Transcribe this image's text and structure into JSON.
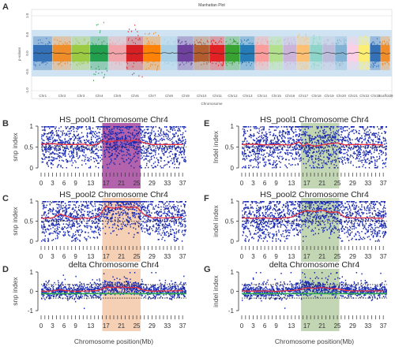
{
  "chart_data": [
    {
      "type": "scatter",
      "panel": "A",
      "title": "Manhattan Plot",
      "xlabel": "Chromosome",
      "ylabel": "p-values",
      "categories": [
        "Chr1",
        "Chr2",
        "Chr3",
        "Chr4",
        "Chr5",
        "Chr6",
        "Chr7",
        "Chr8",
        "Chr9",
        "Chr10",
        "Chr11",
        "Chr12",
        "Chr13",
        "Chr14",
        "Chr15",
        "Chr16",
        "Chr17",
        "Chr18",
        "Chr19",
        "Chr20",
        "Chr21",
        "Chr22",
        "Chr23",
        "ScaffoldN"
      ],
      "category_labels": [
        "Chr1",
        "Chr2",
        "Chr3",
        "Chr4",
        "Chr5",
        "Chr6",
        "Chr7",
        "Chr8",
        "Chr9",
        "Chr10",
        "Chr11",
        "Chr12",
        "Chr13",
        "Chr14",
        "Chr15",
        "Chr16",
        "Chr17",
        "Chr18",
        "Chr19",
        "Chr20",
        "Chr21",
        "Chr22",
        "Chr23",
        "Scaffold8"
      ],
      "y_ticks": [
        "1.0",
        "0.5",
        "0.0",
        "-0.5",
        "-1.0"
      ],
      "ylim": [
        -1,
        1
      ],
      "colors": [
        "#2f6db5",
        "#f08a24",
        "#9ac93b",
        "#1e9e49",
        "#f2a3a8",
        "#d7191c",
        "#ff7f00",
        "#a6cee3",
        "#6a3d9a",
        "#b15928",
        "#e31a1c",
        "#33a02c",
        "#1f78b4",
        "#fb9a99",
        "#b2df8a",
        "#cab2d6",
        "#fdbf6f",
        "#8dd3c7",
        "#bebada",
        "#80b1d3",
        "#fccde5",
        "#ffed6f",
        "#2f6db5",
        "#f08a24"
      ]
    },
    {
      "type": "scatter",
      "panel": "B",
      "title": "HS_pool1 Chromosome Chr4",
      "ylabel": "snp index",
      "x_ticks": [
        0,
        3,
        6,
        9,
        13,
        17,
        21,
        25,
        29,
        33,
        37
      ],
      "y_ticks": [
        0,
        0.5,
        1
      ],
      "ylim": [
        0,
        1
      ],
      "xlim": [
        0,
        38
      ],
      "highlight": [
        16,
        26
      ],
      "highlight_color": "#a6469e",
      "point_color": "#1a2ab0",
      "line_color": "#e8323c",
      "threshold": 0.5,
      "trend": [
        [
          0,
          0.57
        ],
        [
          3,
          0.58
        ],
        [
          6,
          0.56
        ],
        [
          9,
          0.56
        ],
        [
          11,
          0.57
        ],
        [
          13,
          0.54
        ],
        [
          15,
          0.58
        ],
        [
          16,
          0.66
        ],
        [
          17,
          0.62
        ],
        [
          19,
          0.64
        ],
        [
          21,
          0.66
        ],
        [
          23,
          0.64
        ],
        [
          25,
          0.67
        ],
        [
          27,
          0.6
        ],
        [
          29,
          0.56
        ],
        [
          33,
          0.56
        ],
        [
          37,
          0.56
        ]
      ]
    },
    {
      "type": "scatter",
      "panel": "C",
      "title": "HS_pool2 Chromosome Chr4",
      "ylabel": "snp index",
      "x_ticks": [
        0,
        3,
        6,
        9,
        13,
        17,
        21,
        25,
        29,
        33,
        37
      ],
      "y_ticks": [
        0,
        0.5,
        1
      ],
      "ylim": [
        0,
        1
      ],
      "xlim": [
        0,
        38
      ],
      "highlight": [
        16,
        26
      ],
      "highlight_color": "#f5c8a8",
      "point_color": "#1a2ab0",
      "line_color": "#e8323c",
      "threshold": 0.5,
      "trend": [
        [
          0,
          0.57
        ],
        [
          3,
          0.58
        ],
        [
          5,
          0.68
        ],
        [
          6,
          0.64
        ],
        [
          9,
          0.55
        ],
        [
          11,
          0.58
        ],
        [
          13,
          0.57
        ],
        [
          15,
          0.62
        ],
        [
          17,
          0.86
        ],
        [
          19,
          0.82
        ],
        [
          21,
          0.86
        ],
        [
          23,
          0.84
        ],
        [
          25,
          0.85
        ],
        [
          27,
          0.66
        ],
        [
          29,
          0.58
        ],
        [
          33,
          0.58
        ],
        [
          37,
          0.6
        ]
      ]
    },
    {
      "type": "scatter",
      "panel": "D",
      "title": "delta Chromosome Chr4",
      "xlabel": "Chromosome position(Mb)",
      "ylabel": "snp index",
      "x_ticks": [
        0,
        3,
        6,
        9,
        13,
        17,
        21,
        25,
        29,
        33,
        37
      ],
      "y_ticks": [
        -1,
        0,
        1
      ],
      "ylim": [
        -1,
        1
      ],
      "xlim": [
        0,
        38
      ],
      "highlight": [
        16,
        26
      ],
      "highlight_color": "#f5c8a8",
      "point_color": "#1a2ab0",
      "line_color": "#e8323c",
      "threshold_upper": 0.35,
      "threshold_lower": -0.35,
      "trend": [
        [
          0,
          0.0
        ],
        [
          3,
          0.02
        ],
        [
          5,
          0.08
        ],
        [
          6,
          0.04
        ],
        [
          9,
          0.0
        ],
        [
          13,
          0.02
        ],
        [
          15,
          0.05
        ],
        [
          17,
          0.22
        ],
        [
          19,
          0.2
        ],
        [
          21,
          0.22
        ],
        [
          23,
          0.2
        ],
        [
          25,
          0.2
        ],
        [
          27,
          0.05
        ],
        [
          29,
          0.01
        ],
        [
          33,
          0.02
        ],
        [
          37,
          0.03
        ]
      ]
    },
    {
      "type": "scatter",
      "panel": "E",
      "title": "HS_pool1 Chromosome Chr4",
      "ylabel": "Indel index",
      "x_ticks": [
        0,
        3,
        6,
        9,
        13,
        17,
        21,
        25,
        29,
        33,
        37
      ],
      "y_ticks": [
        0,
        0.5,
        1
      ],
      "ylim": [
        0,
        1
      ],
      "xlim": [
        0,
        38
      ],
      "highlight": [
        15.5,
        25.5
      ],
      "highlight_color": "#b9cfa6",
      "point_color": "#1a2ab0",
      "line_color": "#e8323c",
      "threshold": 0.5,
      "trend": [
        [
          0,
          0.56
        ],
        [
          3,
          0.57
        ],
        [
          6,
          0.55
        ],
        [
          9,
          0.56
        ],
        [
          13,
          0.55
        ],
        [
          15,
          0.62
        ],
        [
          16,
          0.52
        ],
        [
          17,
          0.58
        ],
        [
          19,
          0.52
        ],
        [
          21,
          0.55
        ],
        [
          23,
          0.58
        ],
        [
          25,
          0.6
        ],
        [
          27,
          0.55
        ],
        [
          29,
          0.56
        ],
        [
          33,
          0.56
        ],
        [
          37,
          0.55
        ]
      ]
    },
    {
      "type": "scatter",
      "panel": "F",
      "title": "HS_pool2 Chromosome Chr4",
      "ylabel": "indel index",
      "x_ticks": [
        0,
        3,
        6,
        9,
        13,
        17,
        21,
        25,
        29,
        33,
        37
      ],
      "y_ticks": [
        0,
        0.5,
        1
      ],
      "ylim": [
        0,
        1
      ],
      "xlim": [
        0,
        38
      ],
      "highlight": [
        15.5,
        25.5
      ],
      "highlight_color": "#b9cfa6",
      "point_color": "#1a2ab0",
      "line_color": "#e8323c",
      "threshold": 0.5,
      "trend": [
        [
          0,
          0.58
        ],
        [
          3,
          0.57
        ],
        [
          6,
          0.58
        ],
        [
          9,
          0.56
        ],
        [
          13,
          0.6
        ],
        [
          15,
          0.7
        ],
        [
          17,
          0.76
        ],
        [
          19,
          0.74
        ],
        [
          21,
          0.77
        ],
        [
          23,
          0.72
        ],
        [
          25,
          0.73
        ],
        [
          27,
          0.6
        ],
        [
          29,
          0.58
        ],
        [
          33,
          0.58
        ],
        [
          37,
          0.57
        ]
      ]
    },
    {
      "type": "scatter",
      "panel": "G",
      "title": "delta Chromosome Chr4",
      "xlabel": "Chromosome position(Mb)",
      "ylabel": "indel index",
      "x_ticks": [
        0,
        3,
        6,
        9,
        13,
        17,
        21,
        25,
        29,
        33,
        37
      ],
      "y_ticks": [
        -1,
        0,
        1
      ],
      "ylim": [
        -1,
        1
      ],
      "xlim": [
        0,
        38
      ],
      "highlight": [
        15.5,
        25.5
      ],
      "highlight_color": "#b9cfa6",
      "point_color": "#1a2ab0",
      "line_color": "#e8323c",
      "threshold_upper": 0.35,
      "threshold_lower": -0.35,
      "trend": [
        [
          0,
          0.02
        ],
        [
          3,
          0.01
        ],
        [
          6,
          0.02
        ],
        [
          9,
          0.0
        ],
        [
          13,
          0.04
        ],
        [
          15,
          0.08
        ],
        [
          17,
          0.18
        ],
        [
          19,
          0.16
        ],
        [
          21,
          0.2
        ],
        [
          23,
          0.15
        ],
        [
          25,
          0.14
        ],
        [
          27,
          0.05
        ],
        [
          29,
          0.02
        ],
        [
          33,
          0.02
        ],
        [
          37,
          0.02
        ]
      ]
    }
  ]
}
